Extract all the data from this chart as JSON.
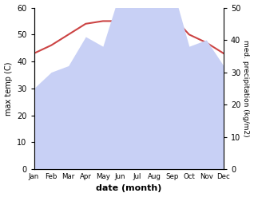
{
  "months": [
    "Jan",
    "Feb",
    "Mar",
    "Apr",
    "May",
    "Jun",
    "Jul",
    "Aug",
    "Sep",
    "Oct",
    "Nov",
    "Dec"
  ],
  "max_temp": [
    43,
    46,
    50,
    54,
    55,
    55,
    58,
    57,
    57,
    50,
    47,
    43
  ],
  "precipitation": [
    25,
    30,
    32,
    41,
    38,
    55,
    52,
    55,
    57,
    38,
    40,
    32
  ],
  "temp_color": "#cc4444",
  "precip_fill_color": "#c8d0f5",
  "precip_line_color": "#b0bcee",
  "temp_ylim": [
    0,
    60
  ],
  "precip_ylim": [
    0,
    50
  ],
  "temp_yticks": [
    0,
    10,
    20,
    30,
    40,
    50,
    60
  ],
  "precip_yticks": [
    0,
    10,
    20,
    30,
    40,
    50
  ],
  "xlabel": "date (month)",
  "ylabel_left": "max temp (C)",
  "ylabel_right": "med. precipitation (kg/m2)"
}
